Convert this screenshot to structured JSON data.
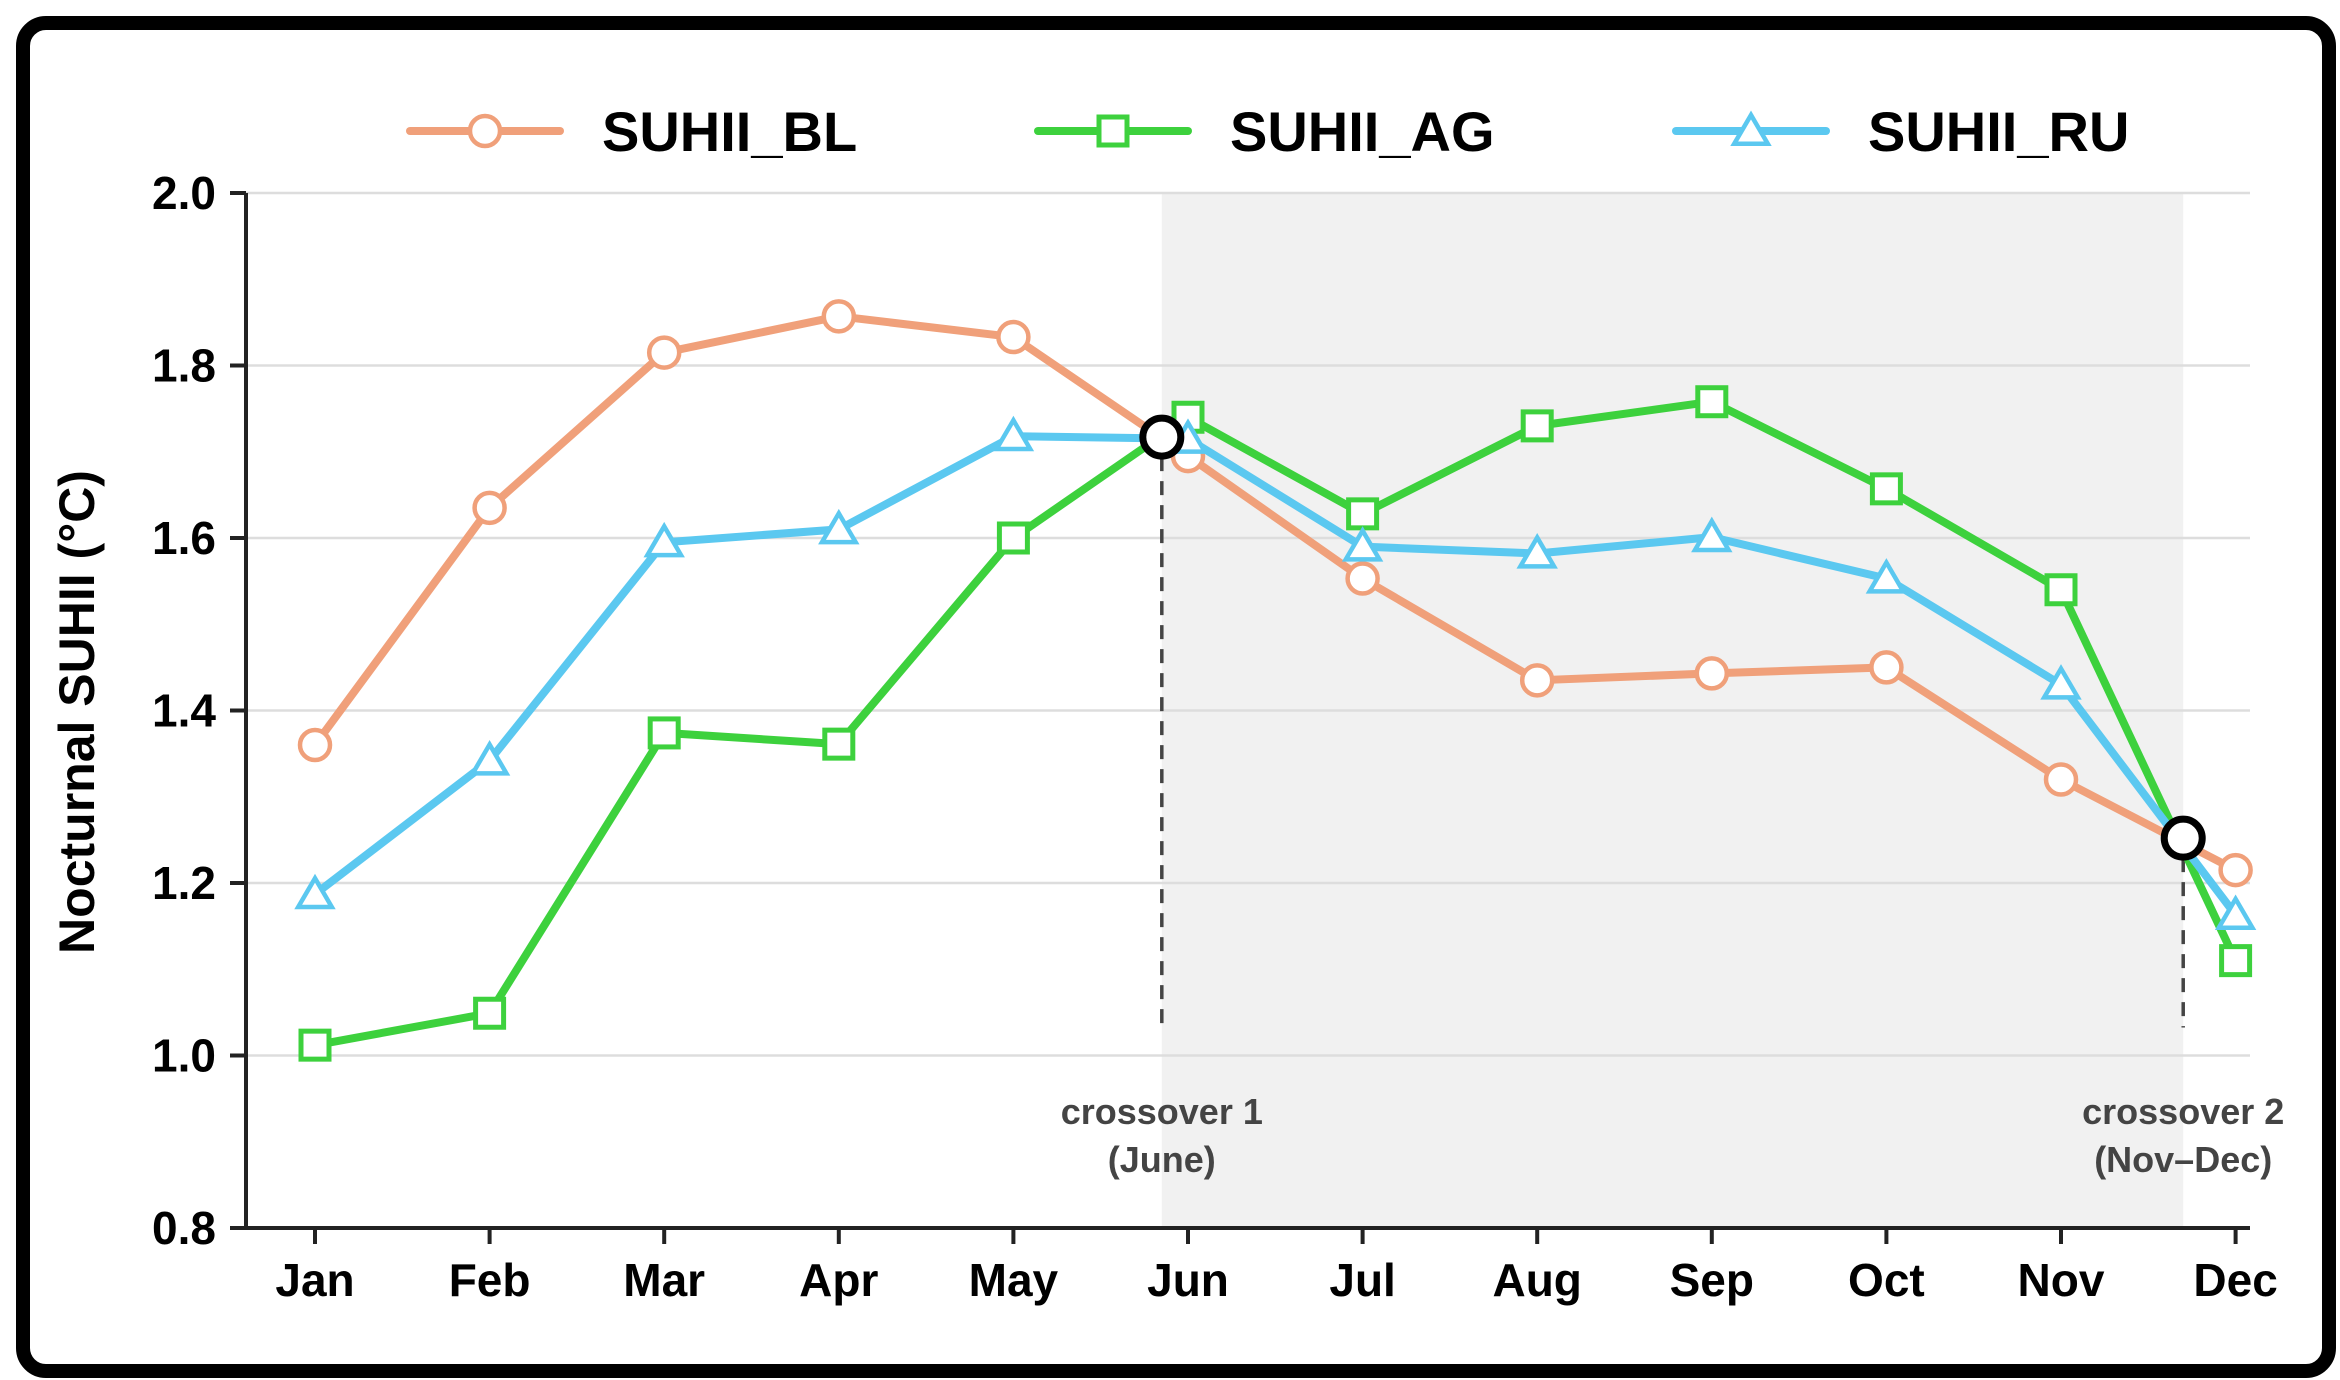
{
  "chart_data": {
    "type": "line",
    "title": "",
    "xlabel": "",
    "ylabel": "Nocturnal SUHII (°C)",
    "categories": [
      "Jan",
      "Feb",
      "Mar",
      "Apr",
      "May",
      "Jun",
      "Jul",
      "Aug",
      "Sep",
      "Oct",
      "Nov",
      "Dec"
    ],
    "ylim": [
      0.8,
      2.0
    ],
    "yticks": [
      "0.8",
      "1.0",
      "1.2",
      "1.4",
      "1.6",
      "1.8",
      "2.0"
    ],
    "grid": "horizontal",
    "legend_position": "top",
    "series": [
      {
        "name": "SUHII_BL",
        "color": "#F0A07A",
        "marker": "circle",
        "values": [
          1.36,
          1.635,
          1.815,
          1.857,
          1.833,
          1.695,
          1.553,
          1.435,
          1.443,
          1.45,
          1.32,
          1.215
        ]
      },
      {
        "name": "SUHII_AG",
        "color": "#3DD13D",
        "marker": "square",
        "values": [
          1.012,
          1.049,
          1.374,
          1.361,
          1.6,
          1.74,
          1.628,
          1.73,
          1.758,
          1.657,
          1.54,
          1.11
        ]
      },
      {
        "name": "SUHII_RU",
        "color": "#5BC8F0",
        "marker": "triangle",
        "values": [
          1.187,
          1.342,
          1.595,
          1.61,
          1.718,
          1.715,
          1.59,
          1.582,
          1.601,
          1.553,
          1.43,
          1.163
        ]
      }
    ],
    "shaded_region": {
      "x_start": 4.85,
      "x_end": 10.7,
      "color": "#F1F1F1"
    },
    "crossovers": [
      {
        "x": 4.85,
        "y": 1.717,
        "label_line1": "crossover 1",
        "label_line2": "(June)"
      },
      {
        "x": 10.7,
        "y": 1.252,
        "label_line1": "crossover 2",
        "label_line2": "(Nov–Dec)"
      }
    ]
  }
}
